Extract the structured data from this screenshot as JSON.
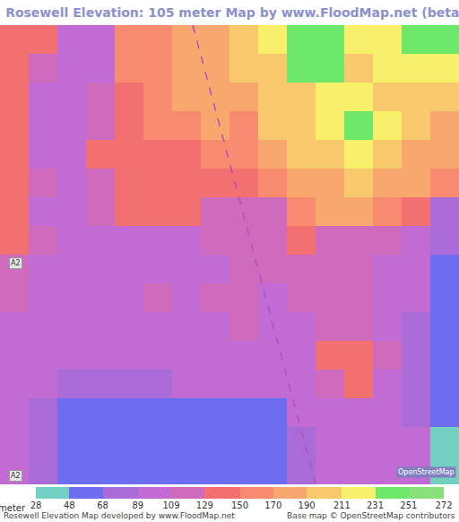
{
  "chart_data": {
    "type": "heatmap",
    "title": "Rosewell Elevation: 105 meter Map by www.FloodMap.net (beta)",
    "cells": [
      [
        140,
        140,
        100,
        100,
        150,
        160,
        175,
        180,
        190,
        215,
        240,
        245,
        225,
        215,
        245,
        245
      ],
      [
        140,
        120,
        100,
        100,
        150,
        165,
        180,
        180,
        195,
        210,
        235,
        240,
        205,
        215,
        215,
        220
      ],
      [
        140,
        105,
        100,
        110,
        145,
        160,
        170,
        175,
        175,
        200,
        210,
        230,
        220,
        210,
        205,
        200
      ],
      [
        140,
        100,
        100,
        120,
        140,
        150,
        165,
        170,
        165,
        190,
        205,
        215,
        235,
        215,
        195,
        185
      ],
      [
        135,
        100,
        105,
        130,
        140,
        140,
        145,
        160,
        150,
        175,
        200,
        210,
        220,
        195,
        180,
        170
      ],
      [
        140,
        110,
        105,
        120,
        140,
        140,
        145,
        140,
        130,
        160,
        175,
        185,
        200,
        180,
        170,
        150
      ],
      [
        140,
        105,
        100,
        110,
        140,
        140,
        135,
        120,
        115,
        125,
        160,
        170,
        170,
        160,
        130,
        75
      ],
      [
        140,
        110,
        105,
        105,
        105,
        105,
        100,
        110,
        110,
        110,
        145,
        120,
        125,
        110,
        100,
        70
      ],
      [
        115,
        105,
        100,
        100,
        100,
        105,
        100,
        105,
        110,
        110,
        110,
        110,
        110,
        100,
        100,
        65
      ],
      [
        110,
        100,
        105,
        100,
        100,
        110,
        105,
        110,
        110,
        105,
        110,
        110,
        110,
        105,
        90,
        60
      ],
      [
        105,
        100,
        100,
        100,
        100,
        105,
        100,
        105,
        110,
        100,
        100,
        110,
        115,
        100,
        80,
        60
      ],
      [
        105,
        100,
        100,
        95,
        95,
        100,
        100,
        105,
        105,
        100,
        100,
        130,
        140,
        110,
        75,
        60
      ],
      [
        100,
        95,
        85,
        80,
        80,
        85,
        90,
        90,
        90,
        90,
        95,
        110,
        140,
        105,
        70,
        60
      ],
      [
        95,
        85,
        65,
        60,
        60,
        60,
        60,
        60,
        60,
        65,
        90,
        100,
        100,
        95,
        70,
        60
      ],
      [
        90,
        75,
        60,
        60,
        60,
        55,
        60,
        60,
        60,
        60,
        85,
        100,
        100,
        100,
        95,
        40
      ],
      [
        90,
        70,
        60,
        60,
        60,
        60,
        60,
        60,
        60,
        60,
        80,
        95,
        100,
        95,
        90,
        40
      ]
    ],
    "colorbar": {
      "title": "meter",
      "range": [
        28,
        272
      ],
      "ticks": [
        28,
        48,
        68,
        89,
        109,
        129,
        150,
        170,
        190,
        211,
        231,
        251,
        272
      ],
      "colors": [
        "#72cfc2",
        "#6e6cf0",
        "#a86bd7",
        "#c26bd5",
        "#cf6bbd",
        "#f2706f",
        "#f78a6f",
        "#f8a86e",
        "#f8c86d",
        "#f8f06b",
        "#6ee86b",
        "#88e07a"
      ]
    },
    "map_labels": [
      {
        "text": "A2",
        "x": -0.2,
        "y": 7.8
      },
      {
        "text": "A2",
        "x": -0.2,
        "y": 15.2
      }
    ],
    "logo": "OpenStreetMap",
    "footer": "Rosewell Elevation Map developed by www.FloodMap.net",
    "credit": "Base map © OpenStreetMap contributors"
  }
}
